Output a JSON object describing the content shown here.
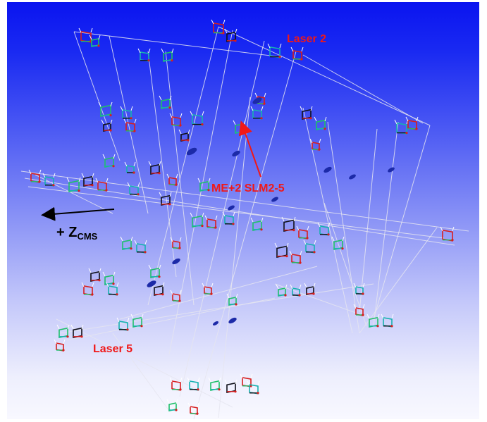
{
  "labels": {
    "laser2": "Laser 2",
    "laser5": "Laser 5",
    "chamber": "ME+2 SLM2-5",
    "z_prefix": "+ Z",
    "z_sub": "CMS"
  },
  "colors": {
    "annotation": "#f01818",
    "axis_arrow": "#000000",
    "beam_lines": "#e6e6f0",
    "sensor_red": "#d81e1e",
    "sensor_green": "#1fc06a",
    "sensor_teal": "#17b2b0",
    "sensor_dark": "#101018",
    "sensor_blue": "#1c2aa8"
  },
  "icons": {
    "chamber_pointer": "red-arrow",
    "z_direction": "left-arrow"
  }
}
